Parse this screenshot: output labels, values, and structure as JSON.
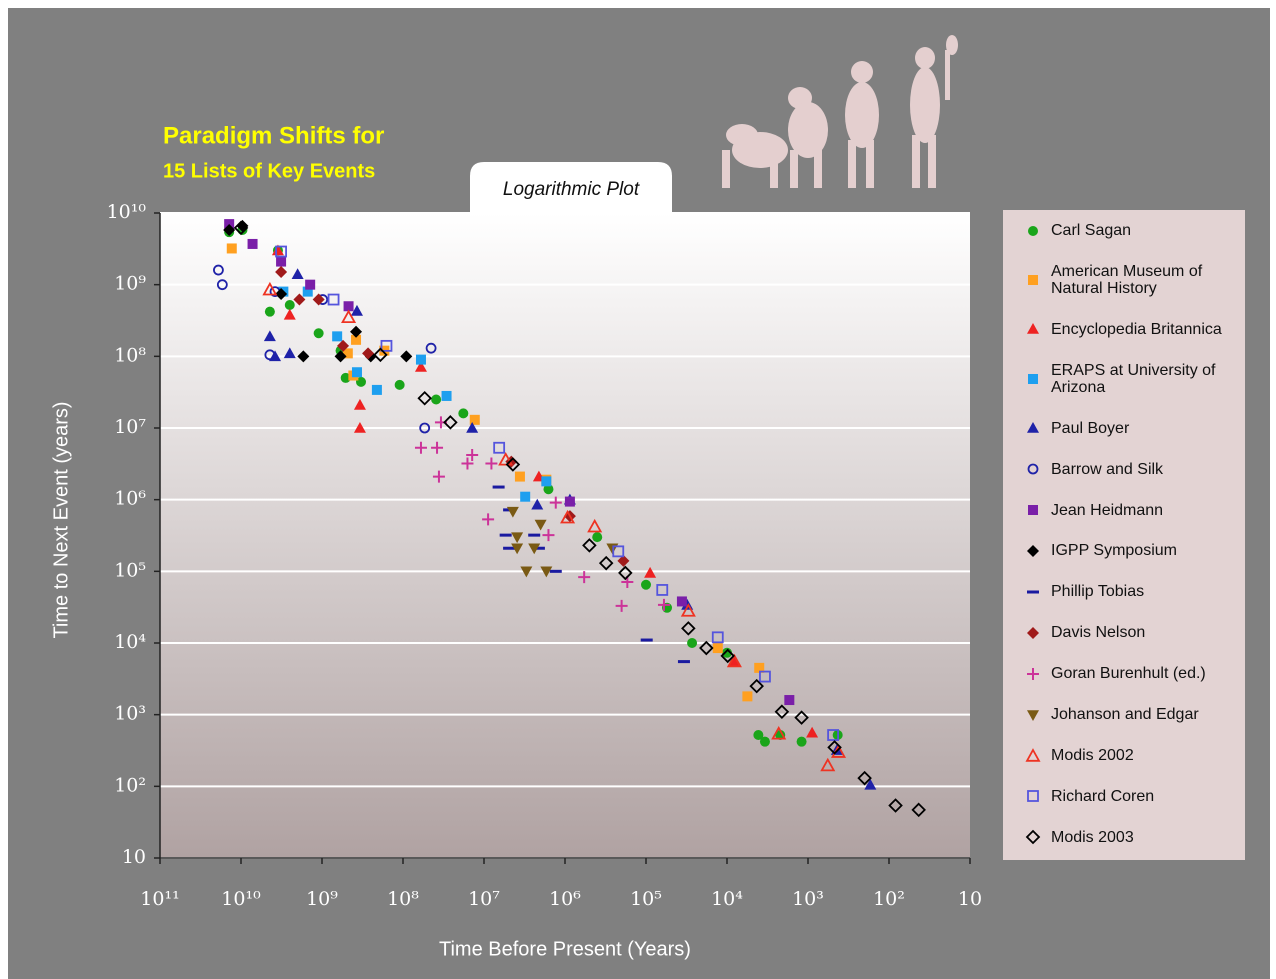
{
  "chart_data": {
    "type": "scatter",
    "title": "Paradigm Shifts for",
    "subtitle": "15 Lists of Key Events",
    "annotation": "Logarithmic Plot",
    "xlabel": "Time Before Present (Years)",
    "ylabel": "Time to Next Event (years)",
    "xscale": "log",
    "yscale": "log",
    "xlim": [
      100000000000,
      10
    ],
    "ylim": [
      10,
      10000000000
    ],
    "xticks": [
      {
        "value": 100000000000,
        "label": "10¹¹"
      },
      {
        "value": 10000000000,
        "label": "10¹⁰"
      },
      {
        "value": 1000000000,
        "label": "10⁹"
      },
      {
        "value": 100000000,
        "label": "10⁸"
      },
      {
        "value": 10000000,
        "label": "10⁷"
      },
      {
        "value": 1000000,
        "label": "10⁶"
      },
      {
        "value": 100000,
        "label": "10⁵"
      },
      {
        "value": 10000,
        "label": "10⁴"
      },
      {
        "value": 1000,
        "label": "10³"
      },
      {
        "value": 100,
        "label": "10²"
      },
      10
    ],
    "yticks": [
      10,
      {
        "value": 100,
        "label": "10²"
      },
      {
        "value": 1000,
        "label": "10³"
      },
      {
        "value": 10000,
        "label": "10⁴"
      },
      {
        "value": 100000,
        "label": "10⁵"
      },
      {
        "value": 1000000,
        "label": "10⁶"
      },
      {
        "value": 10000000,
        "label": "10⁷"
      },
      {
        "value": 100000000,
        "label": "10⁸"
      },
      {
        "value": 1000000000,
        "label": "10⁹"
      },
      {
        "value": 10000000000,
        "label": "10¹⁰"
      }
    ],
    "grid": true,
    "legend": "right",
    "series": [
      {
        "name": "Carl Sagan",
        "color": "#1aa51a",
        "marker": "circle",
        "x": [
          14000000000,
          9600000000,
          3500000000,
          4400000000,
          2500000000,
          1100000000,
          590000000,
          510000000,
          330000000,
          110000000,
          39000000,
          18000000,
          1600000,
          400000,
          100000,
          55000,
          27000,
          10000,
          4100,
          3400,
          2200,
          1200,
          430
        ],
        "values": [
          5400000000,
          5800000000,
          3000000000,
          420000000,
          520000000,
          210000000,
          120000000,
          50000000,
          44000000,
          40000000,
          25000000,
          16000000,
          1400000,
          300000,
          65000,
          31000,
          10000,
          7300,
          520,
          420,
          520,
          420,
          520
        ]
      },
      {
        "name": "American Museum of Natural History",
        "color": "#ffa020",
        "marker": "square",
        "x": [
          13000000000,
          480000000,
          380000000,
          410000000,
          170000000,
          13000000,
          3600000,
          1700000,
          13000,
          5600,
          4000
        ],
        "values": [
          3200000000,
          110000000,
          170000000,
          54000000,
          120000000,
          13000000,
          2100000,
          1900000,
          8500,
          1800,
          4500
        ]
      },
      {
        "name": "Encyclopedia Britannica",
        "color": "#ee2222",
        "marker": "triangle",
        "x": [
          3500000000,
          2500000000,
          340000000,
          340000000,
          60000000,
          2100000,
          89000,
          8300,
          890
        ],
        "values": [
          3000000000,
          380000000,
          10000000,
          21000000,
          71000000,
          2100000,
          95000,
          5500,
          560
        ]
      },
      {
        "name": "ERAPS at University of Arizona",
        "color": "#1e9fef",
        "marker": "square",
        "x": [
          3000000000,
          1500000000,
          650000000,
          370000000,
          210000000,
          60000000,
          29000000,
          3100000,
          1700000
        ],
        "values": [
          800000000,
          800000000,
          190000000,
          60000000,
          34000000,
          90000000,
          28000000,
          1100000,
          1800000
        ]
      },
      {
        "name": "Paul Boyer",
        "color": "#1f22a8",
        "marker": "triangle",
        "x": [
          4400000000,
          3800000000,
          2500000000,
          2000000000,
          370000000,
          14000000,
          2200000,
          870000,
          31000,
          440,
          170
        ],
        "values": [
          190000000,
          100000000,
          110000000,
          1400000000,
          430000000,
          10000000,
          850000,
          1000000,
          34000,
          320,
          105
        ]
      },
      {
        "name": "Barrow and Silk",
        "color": "#1f22a8",
        "marker": "circle-open",
        "x": [
          19000000000,
          17000000000,
          4400000000,
          3800000000,
          980000000,
          54000000,
          45000000
        ],
        "values": [
          1600000000,
          1000000000,
          105000000,
          800000000,
          620000000,
          10000000,
          130000000
        ]
      },
      {
        "name": "Jean Heidmann",
        "color": "#7a1fa8",
        "marker": "square",
        "x": [
          14000000000,
          7200000000,
          3200000000,
          1400000000,
          470000000,
          870000,
          36000,
          1700
        ],
        "values": [
          7000000000,
          3700000000,
          2100000000,
          1000000000,
          500000000,
          940000,
          38000,
          1600
        ]
      },
      {
        "name": "IGPP Symposium",
        "color": "#000000",
        "marker": "diamond",
        "x": [
          14000000000,
          9600000000,
          3200000000,
          1700000000,
          590000000,
          380000000,
          250000000,
          91000000
        ],
        "values": [
          5800000000,
          6600000000,
          740000000,
          100000000,
          100000000,
          220000000,
          100000000,
          100000000
        ]
      },
      {
        "name": "Phillip Tobias",
        "color": "#1a1aa0",
        "marker": "dash",
        "x": [
          6600000,
          4900000,
          5400000,
          4900000,
          2100000,
          1300000,
          98000,
          34000,
          2400000
        ],
        "values": [
          1500000,
          720000,
          320000,
          210000,
          210000,
          100000,
          11000,
          5500,
          320000
        ]
      },
      {
        "name": "Davis Nelson",
        "color": "#a01a1a",
        "marker": "diamond",
        "x": [
          3200000000,
          1900000000,
          1100000000,
          550000000,
          270000000,
          4600000,
          870000,
          190000
        ],
        "values": [
          1500000000,
          620000000,
          620000000,
          140000000,
          110000000,
          3400000,
          590000,
          140000
        ]
      },
      {
        "name": "Goran Burenhult (ed.)",
        "color": "#cc3399",
        "marker": "plus",
        "x": [
          60000000,
          38000000,
          36000000,
          34000000,
          16000000,
          14000000,
          8900000,
          8100000,
          1600000,
          1300000,
          580000,
          200000,
          170000,
          60000
        ],
        "values": [
          5300000,
          5300000,
          2100000,
          12000000,
          3200000,
          4200000,
          530000,
          3200000,
          320000,
          910000,
          83000,
          33000,
          71000,
          34000
        ]
      },
      {
        "name": "Johanson and Edgar",
        "color": "#7a5a14",
        "marker": "triangle-down",
        "x": [
          4400000,
          3900000,
          3900000,
          3000000,
          2000000,
          2400000,
          1700000,
          260000
        ],
        "values": [
          680000,
          300000,
          210000,
          100000,
          450000,
          210000,
          100000,
          210000
        ]
      },
      {
        "name": "Modis 2002",
        "color": "#ee3322",
        "marker": "triangle-open",
        "x": [
          4400000000,
          470000000,
          5400000,
          930000,
          430000,
          30000,
          8100,
          2300,
          570,
          420
        ],
        "values": [
          850000000,
          350000000,
          3600000,
          560000,
          420000,
          28000,
          5500,
          540,
          195,
          300
        ]
      },
      {
        "name": "Richard Coren",
        "color": "#5555dd",
        "marker": "square-open",
        "x": [
          3200000000,
          720000000,
          160000000,
          6500000,
          220000,
          63000,
          13000,
          3400,
          490
        ],
        "values": [
          2900000000,
          620000000,
          140000000,
          5300000,
          190000,
          55000,
          12000,
          3400,
          520
        ]
      },
      {
        "name": "Modis 2003",
        "color": "#000000",
        "marker": "diamond-open",
        "x": [
          10000000000,
          190000000,
          54000000,
          26000000,
          4400000,
          500000,
          310000,
          180000,
          30000,
          18000,
          9800,
          4300,
          2100,
          1200,
          470,
          200,
          83,
          43
        ],
        "values": [
          6200000000,
          105000000,
          26000000,
          12000000,
          3100000,
          230000,
          130000,
          95000,
          16000,
          8500,
          6600,
          2500,
          1100,
          910,
          350,
          130,
          54,
          47
        ]
      }
    ]
  }
}
